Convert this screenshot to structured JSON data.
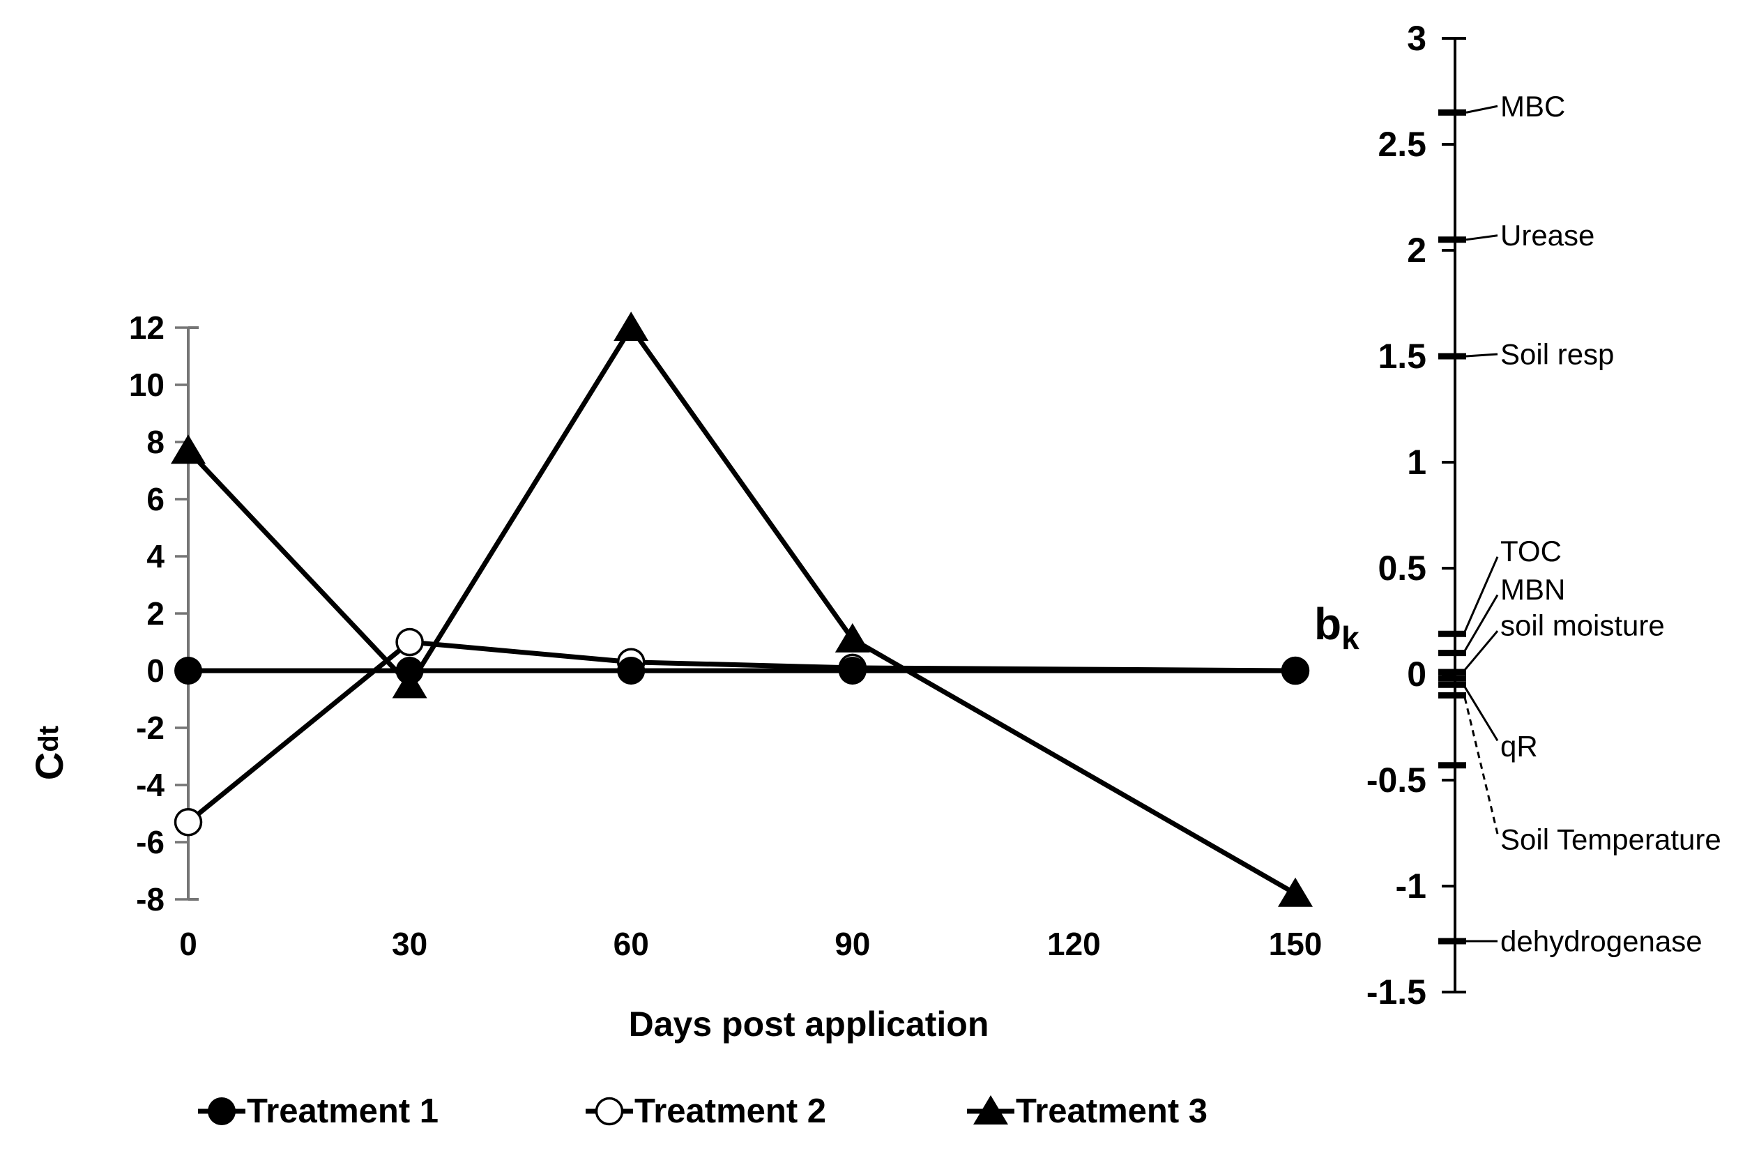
{
  "figure": {
    "background": "#ffffff",
    "ink_color": "#000000",
    "left_axis_line_color": "#757575"
  },
  "chart_data": [
    {
      "type": "line",
      "title": "",
      "xlabel": "Days post application",
      "ylabel": "C",
      "ylabel_sub": "dt",
      "x": [
        0,
        30,
        60,
        90,
        150
      ],
      "x_ticks": [
        0,
        30,
        60,
        90,
        120,
        150
      ],
      "x_tick_labels": [
        "0",
        "30",
        "60",
        "90",
        "120",
        "150"
      ],
      "xlim": [
        0,
        150
      ],
      "ylim": [
        -8,
        12
      ],
      "y_tick_step": 2,
      "y_tick_labels": [
        "12",
        "10",
        "8",
        "6",
        "4",
        "2",
        "0",
        "-2",
        "-4",
        "-6",
        "-8"
      ],
      "grid": false,
      "legend_position": "bottom",
      "series": [
        {
          "name": "Treatment 1",
          "marker": "filled-circle",
          "values": [
            0,
            0,
            0,
            0,
            0
          ]
        },
        {
          "name": "Treatment 2",
          "marker": "open-circle",
          "values": [
            -5.3,
            1.0,
            0.3,
            0.1,
            0
          ]
        },
        {
          "name": "Treatment 3",
          "marker": "filled-triangle",
          "values": [
            7.7,
            -0.5,
            12,
            1.1,
            -7.8
          ]
        }
      ]
    },
    {
      "type": "labeled-axis",
      "title": "",
      "ylabel": "b",
      "ylabel_sub": "k",
      "ylim": [
        -1.5,
        3
      ],
      "y_tick_step": 0.5,
      "y_tick_labels": [
        "3",
        "2.5",
        "2",
        "1.5",
        "1",
        "0.5",
        "0",
        "-0.5",
        "-1",
        "-1.5"
      ],
      "points": [
        {
          "label": "MBC",
          "value": 2.65,
          "label_at": 2.68,
          "leader": "solid"
        },
        {
          "label": "Urease",
          "value": 2.05,
          "label_at": 2.07,
          "leader": "solid"
        },
        {
          "label": "Soil resp",
          "value": 1.5,
          "label_at": 1.51,
          "leader": "solid"
        },
        {
          "label": "TOC",
          "value": 0.19,
          "label_at": 0.58,
          "leader": "solid"
        },
        {
          "label": "MBN",
          "value": 0.1,
          "label_at": 0.4,
          "leader": "solid"
        },
        {
          "label": "soil moisture",
          "value": 0.01,
          "label_at": 0.23,
          "leader": "solid"
        },
        {
          "label": "qR",
          "value": -0.05,
          "label_at": -0.34,
          "leader": "solid"
        },
        {
          "label": "Soil Temperature",
          "value": -0.1,
          "label_at": -0.78,
          "leader": "dashed"
        },
        {
          "label": "dehydrogenase",
          "value": -1.26,
          "label_at": -1.26,
          "leader": "solid"
        }
      ],
      "unlabeled_marks": [
        -0.02,
        -0.43
      ]
    }
  ]
}
